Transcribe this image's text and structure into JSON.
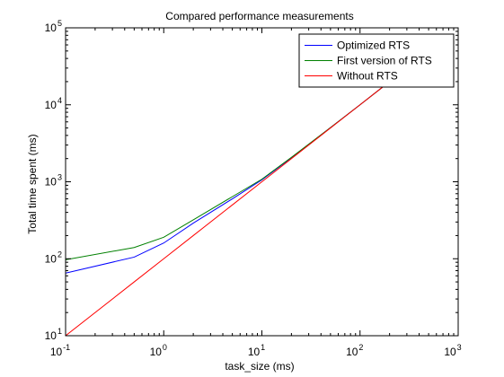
{
  "chart_data": {
    "type": "line",
    "title": "Compared performance measurements",
    "xlabel": "task_size (ms)",
    "ylabel": "Total time spent (ms)",
    "xscale": "log",
    "yscale": "log",
    "xlim": [
      0.1,
      1000
    ],
    "ylim": [
      10,
      100000
    ],
    "x_ticks": [
      {
        "base": "10",
        "exp": "-1",
        "value": 0.1
      },
      {
        "base": "10",
        "exp": "0",
        "value": 1
      },
      {
        "base": "10",
        "exp": "1",
        "value": 10
      },
      {
        "base": "10",
        "exp": "2",
        "value": 100
      },
      {
        "base": "10",
        "exp": "3",
        "value": 1000
      }
    ],
    "y_ticks": [
      {
        "base": "10",
        "exp": "1",
        "value": 10
      },
      {
        "base": "10",
        "exp": "2",
        "value": 100
      },
      {
        "base": "10",
        "exp": "3",
        "value": 1000
      },
      {
        "base": "10",
        "exp": "4",
        "value": 10000
      },
      {
        "base": "10",
        "exp": "5",
        "value": 100000
      }
    ],
    "grid": false,
    "legend_position": "top-right",
    "series": [
      {
        "name": "Optimized RTS",
        "color": "#0000ff",
        "x": [
          0.1,
          0.5,
          1,
          2,
          5,
          10,
          20,
          50,
          100,
          200
        ],
        "y": [
          65,
          105,
          160,
          290,
          600,
          1060,
          2050,
          5050,
          10000,
          20000
        ]
      },
      {
        "name": "First version of RTS",
        "color": "#008000",
        "x": [
          0.1,
          0.5,
          1,
          2,
          5,
          10,
          20,
          50,
          100,
          200
        ],
        "y": [
          97,
          140,
          190,
          320,
          640,
          1080,
          2080,
          5060,
          10000,
          20000
        ]
      },
      {
        "name": "Without RTS",
        "color": "#ff0000",
        "x": [
          0.1,
          0.5,
          1,
          2,
          5,
          10,
          20,
          50,
          100,
          200
        ],
        "y": [
          10,
          50,
          100,
          200,
          500,
          1000,
          2000,
          5000,
          10000,
          20000
        ]
      }
    ]
  }
}
